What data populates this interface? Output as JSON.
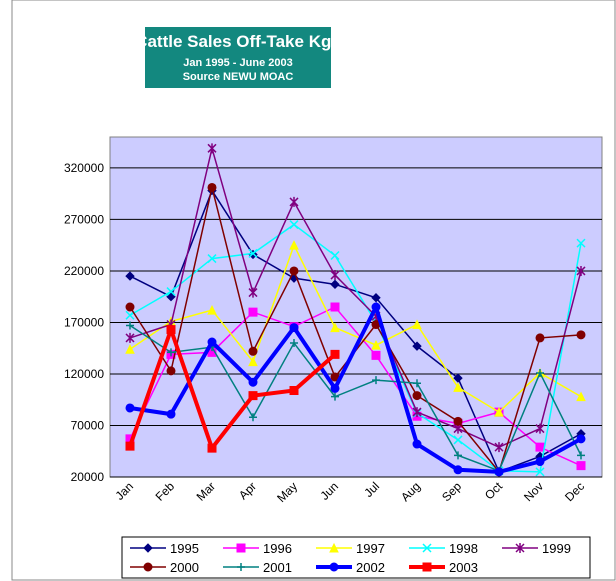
{
  "chart_data": {
    "type": "line",
    "title": "Cattle Sales Off-Take Kgs",
    "subtitle": [
      "Jan 1995 - June 2003",
      "Source NEWU MOAC"
    ],
    "categories": [
      "Jan",
      "Feb",
      "Mar",
      "Apr",
      "May",
      "Jun",
      "Jul",
      "Aug",
      "Sep",
      "Oct",
      "Nov",
      "Dec"
    ],
    "ylim": [
      20000,
      350000
    ],
    "yticks": [
      20000,
      70000,
      120000,
      170000,
      220000,
      270000,
      320000
    ],
    "grid": true,
    "legend": "bottom",
    "series": [
      {
        "name": "1995",
        "color": "#000080",
        "marker": "diamond",
        "values": [
          215000,
          195000,
          298000,
          236000,
          213000,
          207000,
          194000,
          147000,
          116000,
          25000,
          40000,
          62000
        ]
      },
      {
        "name": "1996",
        "color": "#ff00ff",
        "marker": "square",
        "values": [
          57000,
          139000,
          141000,
          180000,
          166000,
          185000,
          138000,
          79000,
          72000,
          83000,
          49000,
          31000
        ]
      },
      {
        "name": "1997",
        "color": "#ffff00",
        "marker": "triangle",
        "values": [
          144000,
          171000,
          182000,
          132000,
          245000,
          165000,
          148000,
          168000,
          107000,
          83000,
          121000,
          98000
        ]
      },
      {
        "name": "1998",
        "color": "#00ffff",
        "marker": "x",
        "values": [
          177000,
          200000,
          232000,
          237000,
          265000,
          235000,
          170000,
          82000,
          56000,
          26000,
          25000,
          247000
        ]
      },
      {
        "name": "1999",
        "color": "#800080",
        "marker": "star",
        "values": [
          155000,
          168000,
          339000,
          199000,
          287000,
          216000,
          176000,
          83000,
          67000,
          49000,
          67000,
          220000
        ]
      },
      {
        "name": "2000",
        "color": "#800000",
        "marker": "circle",
        "values": [
          185000,
          123000,
          301000,
          142000,
          220000,
          117000,
          168000,
          99000,
          74000,
          25000,
          155000,
          158000
        ]
      },
      {
        "name": "2001",
        "color": "#008080",
        "marker": "plus",
        "values": [
          167000,
          141000,
          146000,
          78000,
          150000,
          98000,
          114000,
          111000,
          41000,
          26000,
          121000,
          41000
        ]
      },
      {
        "name": "2002",
        "color": "#0000ff",
        "marker": "circle",
        "width": 4,
        "values": [
          87000,
          81000,
          151000,
          112000,
          165000,
          106000,
          185000,
          52000,
          27000,
          25000,
          35000,
          57000
        ]
      },
      {
        "name": "2003",
        "color": "#ff0000",
        "marker": "square",
        "width": 4,
        "values": [
          50000,
          163000,
          48000,
          99000,
          104000,
          139000,
          null,
          null,
          null,
          null,
          null,
          null
        ]
      }
    ]
  }
}
